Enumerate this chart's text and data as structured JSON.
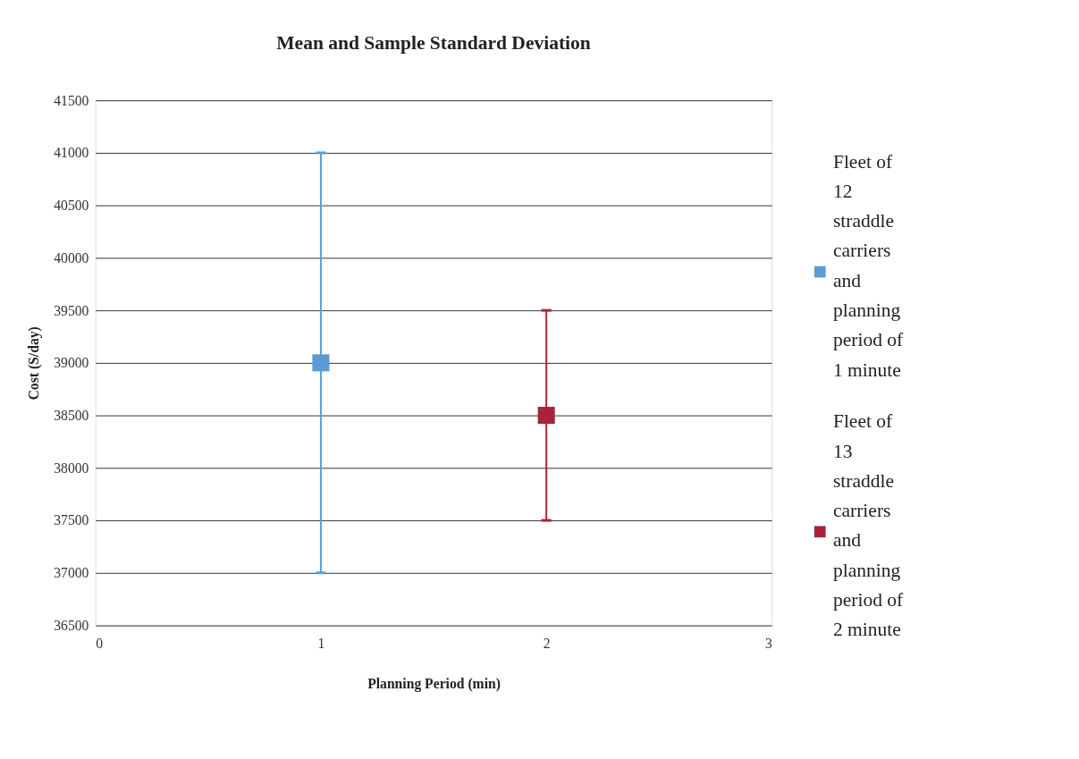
{
  "chart_data": {
    "type": "scatter",
    "title": "Mean and Sample Standard Deviation",
    "xlabel": "Planning Period (min)",
    "ylabel": "Cost (S/day)",
    "series": [
      {
        "name": "Fleet of 12 straddle carriers and planning period of 1 minute",
        "color": "#5b9bd5",
        "x": [
          1
        ],
        "values": [
          39000
        ],
        "errors": [
          2000
        ]
      },
      {
        "name": "Fleet of 13 straddle carriers and planning period of 2 minute",
        "color": "#a5243a",
        "x": [
          2
        ],
        "values": [
          38500
        ],
        "errors": [
          1000
        ]
      }
    ],
    "xlim": [
      0,
      3
    ],
    "xticks": [
      0,
      1,
      2,
      3
    ],
    "ylim": [
      36500,
      41500
    ],
    "yticks": [
      36500,
      37000,
      37500,
      38000,
      38500,
      39000,
      39500,
      40000,
      40500,
      41000,
      41500
    ],
    "grid": "y",
    "legend": "right",
    "marker": "square"
  }
}
